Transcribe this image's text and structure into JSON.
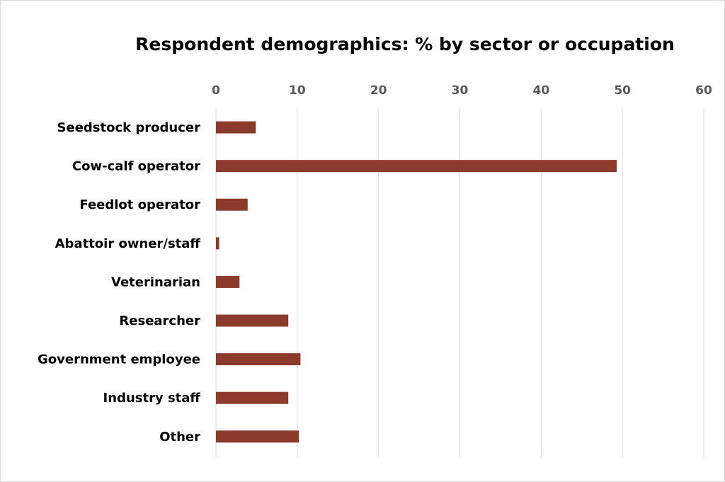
{
  "chart_data": {
    "type": "bar",
    "orientation": "horizontal",
    "title": "Respondent demographics: % by sector or occupation",
    "xlabel": "",
    "ylabel": "",
    "xlim": [
      0,
      60
    ],
    "x_ticks": [
      0,
      10,
      20,
      30,
      40,
      50,
      60
    ],
    "x_axis_position": "top",
    "grid": true,
    "categories": [
      "Seedstock producer",
      "Cow-calf operator",
      "Feedlot operator",
      "Abattoir owner/staff",
      "Veterinarian",
      "Researcher",
      "Government employee",
      "Industry staff",
      "Other"
    ],
    "values": [
      4.9,
      49.3,
      3.9,
      0.4,
      2.9,
      8.9,
      10.4,
      8.9,
      10.2
    ],
    "bar_color": "#8b3a2b",
    "grid_color": "#d9d9d9"
  }
}
